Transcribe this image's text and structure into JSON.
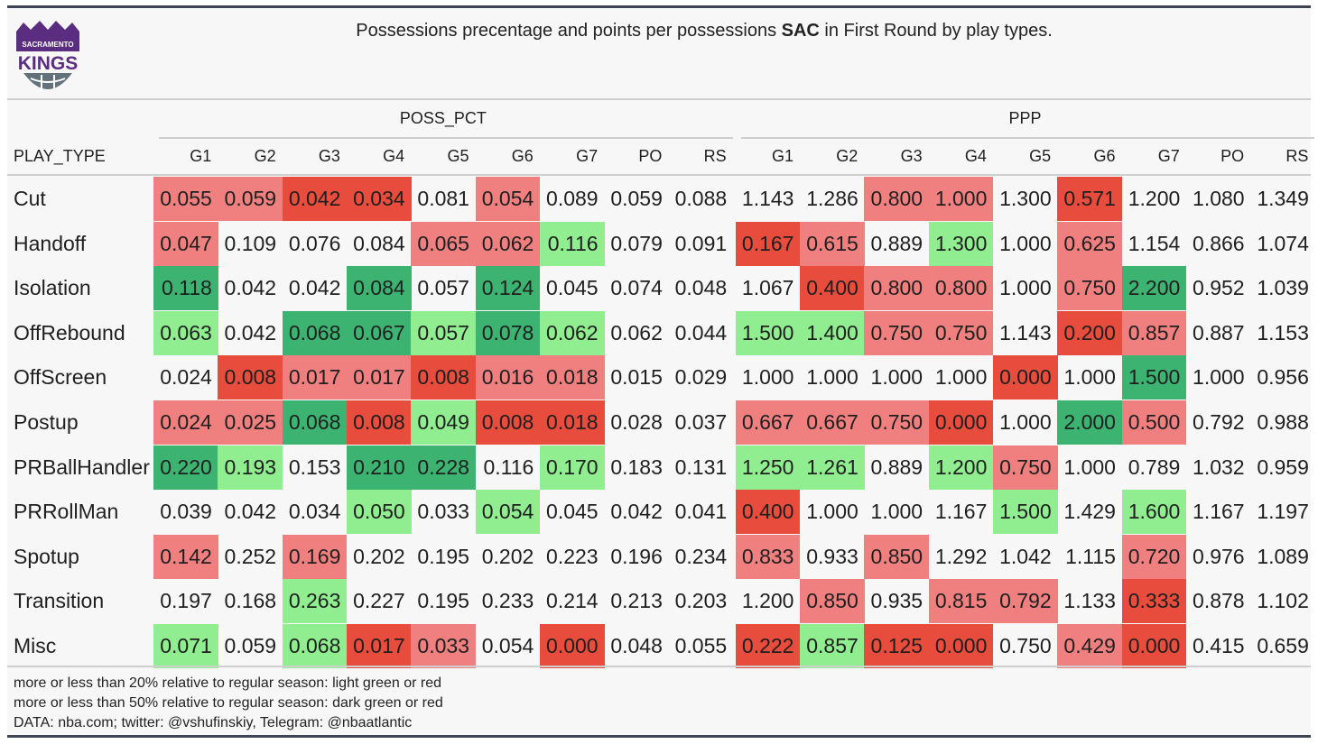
{
  "title": {
    "before": "Possessions precentage and points per possessions ",
    "team": "SAC",
    "after": " in First Round by play types."
  },
  "logo": {
    "top_text": "SACRAMENTO",
    "main_text": "KINGS",
    "color": "#5a2d81"
  },
  "chart_data": {
    "type": "table",
    "row_header": "PLAY_TYPE",
    "groups": [
      {
        "name": "POSS_PCT",
        "columns": [
          "G1",
          "G2",
          "G3",
          "G4",
          "G5",
          "G6",
          "G7",
          "PO",
          "RS"
        ]
      },
      {
        "name": "PPP",
        "columns": [
          "G1",
          "G2",
          "G3",
          "G4",
          "G5",
          "G6",
          "G7",
          "PO",
          "RS"
        ]
      }
    ],
    "color_key": {
      "light_green": "#90ee90",
      "dark_green": "#3cb371",
      "light_red": "#f08080",
      "dark_red": "#e74c3c",
      "none": "transparent"
    },
    "rows": [
      {
        "play_type": "Cut",
        "poss_pct": [
          "0.055",
          "0.059",
          "0.042",
          "0.034",
          "0.081",
          "0.054",
          "0.089",
          "0.059",
          "0.088"
        ],
        "poss_pct_color": [
          "lr",
          "lr",
          "dr",
          "dr",
          "",
          "lr",
          "",
          "",
          ""
        ],
        "ppp": [
          "1.143",
          "1.286",
          "0.800",
          "1.000",
          "1.300",
          "0.571",
          "1.200",
          "1.080",
          "1.349"
        ],
        "ppp_color": [
          "",
          "",
          "lr",
          "lr",
          "",
          "dr",
          "",
          "",
          ""
        ]
      },
      {
        "play_type": "Handoff",
        "poss_pct": [
          "0.047",
          "0.109",
          "0.076",
          "0.084",
          "0.065",
          "0.062",
          "0.116",
          "0.079",
          "0.091"
        ],
        "poss_pct_color": [
          "lr",
          "",
          "",
          "",
          "lr",
          "lr",
          "lg",
          "",
          ""
        ],
        "ppp": [
          "0.167",
          "0.615",
          "0.889",
          "1.300",
          "1.000",
          "0.625",
          "1.154",
          "0.866",
          "1.074"
        ],
        "ppp_color": [
          "dr",
          "lr",
          "",
          "lg",
          "",
          "lr",
          "",
          "",
          ""
        ]
      },
      {
        "play_type": "Isolation",
        "poss_pct": [
          "0.118",
          "0.042",
          "0.042",
          "0.084",
          "0.057",
          "0.124",
          "0.045",
          "0.074",
          "0.048"
        ],
        "poss_pct_color": [
          "dg",
          "",
          "",
          "dg",
          "",
          "dg",
          "",
          "",
          ""
        ],
        "ppp": [
          "1.067",
          "0.400",
          "0.800",
          "0.800",
          "1.000",
          "0.750",
          "2.200",
          "0.952",
          "1.039"
        ],
        "ppp_color": [
          "",
          "dr",
          "lr",
          "lr",
          "",
          "lr",
          "dg",
          "",
          ""
        ]
      },
      {
        "play_type": "OffRebound",
        "poss_pct": [
          "0.063",
          "0.042",
          "0.068",
          "0.067",
          "0.057",
          "0.078",
          "0.062",
          "0.062",
          "0.044"
        ],
        "poss_pct_color": [
          "lg",
          "",
          "dg",
          "dg",
          "lg",
          "dg",
          "lg",
          "",
          ""
        ],
        "ppp": [
          "1.500",
          "1.400",
          "0.750",
          "0.750",
          "1.143",
          "0.200",
          "0.857",
          "0.887",
          "1.153"
        ],
        "ppp_color": [
          "lg",
          "lg",
          "lr",
          "lr",
          "",
          "dr",
          "lr",
          "",
          ""
        ]
      },
      {
        "play_type": "OffScreen",
        "poss_pct": [
          "0.024",
          "0.008",
          "0.017",
          "0.017",
          "0.008",
          "0.016",
          "0.018",
          "0.015",
          "0.029"
        ],
        "poss_pct_color": [
          "",
          "dr",
          "lr",
          "lr",
          "dr",
          "lr",
          "lr",
          "",
          ""
        ],
        "ppp": [
          "1.000",
          "1.000",
          "1.000",
          "1.000",
          "0.000",
          "1.000",
          "1.500",
          "1.000",
          "0.956"
        ],
        "ppp_color": [
          "",
          "",
          "",
          "",
          "dr",
          "",
          "dg",
          "",
          ""
        ]
      },
      {
        "play_type": "Postup",
        "poss_pct": [
          "0.024",
          "0.025",
          "0.068",
          "0.008",
          "0.049",
          "0.008",
          "0.018",
          "0.028",
          "0.037"
        ],
        "poss_pct_color": [
          "lr",
          "lr",
          "dg",
          "dr",
          "lg",
          "dr",
          "dr",
          "",
          ""
        ],
        "ppp": [
          "0.667",
          "0.667",
          "0.750",
          "0.000",
          "1.000",
          "2.000",
          "0.500",
          "0.792",
          "0.988"
        ],
        "ppp_color": [
          "lr",
          "lr",
          "lr",
          "dr",
          "",
          "dg",
          "lr",
          "",
          ""
        ]
      },
      {
        "play_type": "PRBallHandler",
        "poss_pct": [
          "0.220",
          "0.193",
          "0.153",
          "0.210",
          "0.228",
          "0.116",
          "0.170",
          "0.183",
          "0.131"
        ],
        "poss_pct_color": [
          "dg",
          "lg",
          "",
          "dg",
          "dg",
          "",
          "lg",
          "",
          ""
        ],
        "ppp": [
          "1.250",
          "1.261",
          "0.889",
          "1.200",
          "0.750",
          "1.000",
          "0.789",
          "1.032",
          "0.959"
        ],
        "ppp_color": [
          "lg",
          "lg",
          "",
          "lg",
          "lr",
          "",
          "",
          "",
          ""
        ]
      },
      {
        "play_type": "PRRollMan",
        "poss_pct": [
          "0.039",
          "0.042",
          "0.034",
          "0.050",
          "0.033",
          "0.054",
          "0.045",
          "0.042",
          "0.041"
        ],
        "poss_pct_color": [
          "",
          "",
          "",
          "lg",
          "",
          "lg",
          "",
          "",
          ""
        ],
        "ppp": [
          "0.400",
          "1.000",
          "1.000",
          "1.167",
          "1.500",
          "1.429",
          "1.600",
          "1.167",
          "1.197"
        ],
        "ppp_color": [
          "dr",
          "",
          "",
          "",
          "lg",
          "",
          "lg",
          "",
          ""
        ]
      },
      {
        "play_type": "Spotup",
        "poss_pct": [
          "0.142",
          "0.252",
          "0.169",
          "0.202",
          "0.195",
          "0.202",
          "0.223",
          "0.196",
          "0.234"
        ],
        "poss_pct_color": [
          "lr",
          "",
          "lr",
          "",
          "",
          "",
          "",
          "",
          ""
        ],
        "ppp": [
          "0.833",
          "0.933",
          "0.850",
          "1.292",
          "1.042",
          "1.115",
          "0.720",
          "0.976",
          "1.089"
        ],
        "ppp_color": [
          "lr",
          "",
          "lr",
          "",
          "",
          "",
          "lr",
          "",
          ""
        ]
      },
      {
        "play_type": "Transition",
        "poss_pct": [
          "0.197",
          "0.168",
          "0.263",
          "0.227",
          "0.195",
          "0.233",
          "0.214",
          "0.213",
          "0.203"
        ],
        "poss_pct_color": [
          "",
          "",
          "lg",
          "",
          "",
          "",
          "",
          "",
          ""
        ],
        "ppp": [
          "1.200",
          "0.850",
          "0.935",
          "0.815",
          "0.792",
          "1.133",
          "0.333",
          "0.878",
          "1.102"
        ],
        "ppp_color": [
          "",
          "lr",
          "",
          "lr",
          "lr",
          "",
          "dr",
          "",
          ""
        ]
      },
      {
        "play_type": "Misc",
        "poss_pct": [
          "0.071",
          "0.059",
          "0.068",
          "0.017",
          "0.033",
          "0.054",
          "0.000",
          "0.048",
          "0.055"
        ],
        "poss_pct_color": [
          "lg",
          "",
          "lg",
          "dr",
          "lr",
          "",
          "dr",
          "",
          ""
        ],
        "ppp": [
          "0.222",
          "0.857",
          "0.125",
          "0.000",
          "0.750",
          "0.429",
          "0.000",
          "0.415",
          "0.659"
        ],
        "ppp_color": [
          "dr",
          "lg",
          "dr",
          "dr",
          "",
          "lr",
          "dr",
          "",
          ""
        ]
      }
    ]
  },
  "footer": [
    "more or less than 20% relative to regular season: light green or red",
    "more or less than 50% relative to regular season: dark green or red",
    "DATA: nba.com; twitter: @vshufinskiy, Telegram: @nbaatlantic"
  ]
}
